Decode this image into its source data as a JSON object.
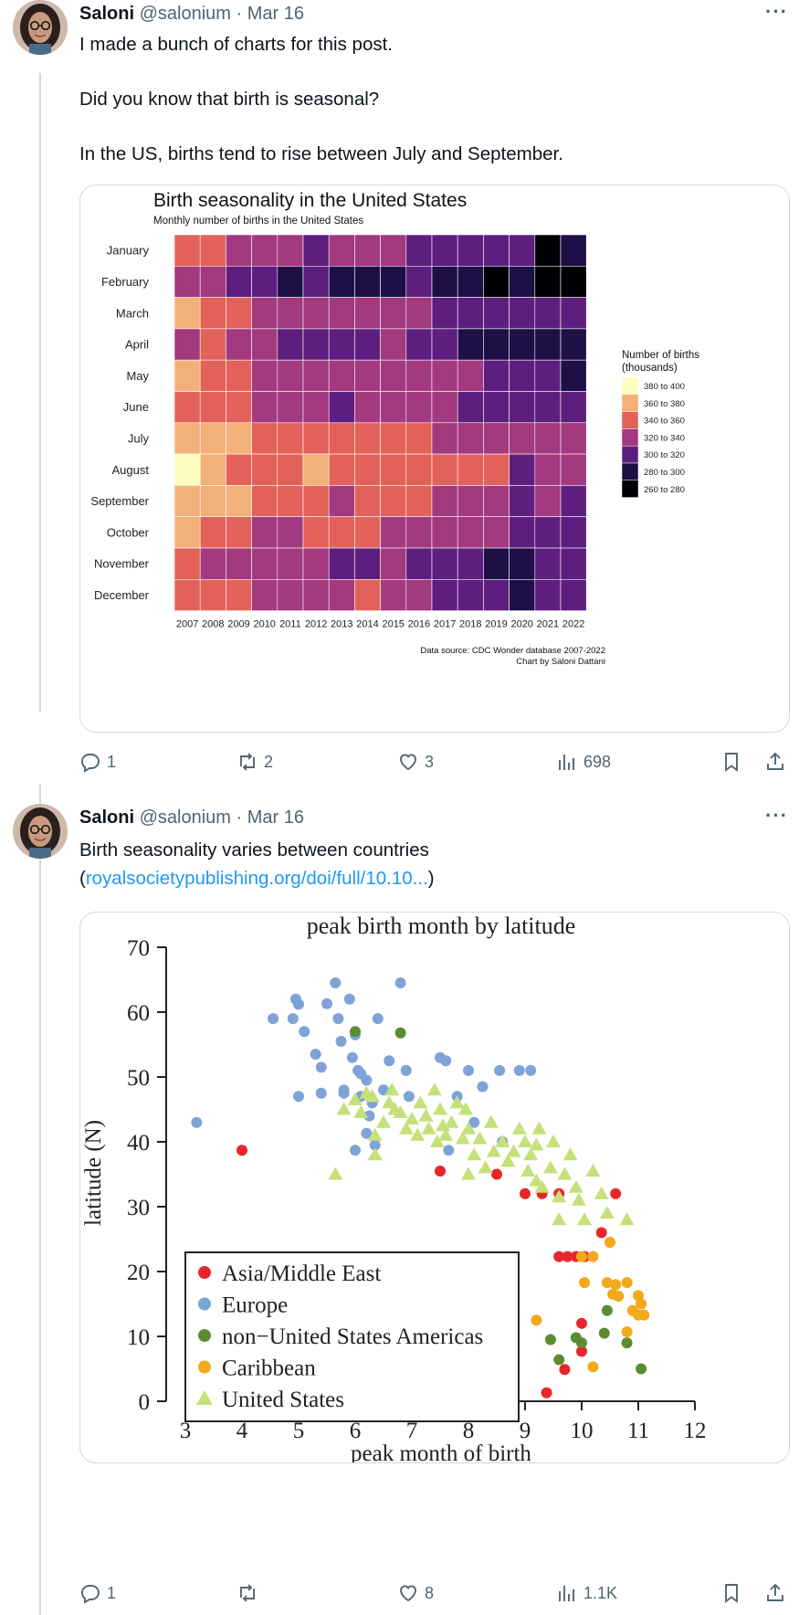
{
  "tweets": [
    {
      "author": "Saloni",
      "handle": "@salonium",
      "separator": "·",
      "date": "Mar 16",
      "text_lines": [
        "I made a bunch of charts for this post.",
        "Did you know that birth is seasonal?",
        "In the US, births tend to rise between July and September."
      ],
      "replies": "1",
      "reposts": "2",
      "likes": "3",
      "views": "698"
    },
    {
      "author": "Saloni",
      "handle": "@salonium",
      "separator": "·",
      "date": "Mar 16",
      "text_line1": "Birth seasonality varies between countries",
      "text_open_paren": "(",
      "link": "royalsocietypublishing.org/doi/full/10.10...",
      "text_close_paren": ")",
      "replies": "1",
      "reposts": "",
      "likes": "8",
      "views": "1.1K"
    }
  ],
  "chart_data": [
    {
      "type": "heatmap",
      "title": "Birth seasonality in the United States",
      "subtitle": "Monthly number of births in the United States",
      "rows": [
        "January",
        "February",
        "March",
        "April",
        "May",
        "June",
        "July",
        "August",
        "September",
        "October",
        "November",
        "December"
      ],
      "columns": [
        "2007",
        "2008",
        "2009",
        "2010",
        "2011",
        "2012",
        "2013",
        "2014",
        "2015",
        "2016",
        "2017",
        "2018",
        "2019",
        "2020",
        "2021",
        "2022"
      ],
      "values_bin_index": [
        [
          4,
          4,
          3,
          3,
          3,
          2,
          3,
          3,
          3,
          2,
          2,
          2,
          2,
          2,
          0,
          1
        ],
        [
          3,
          3,
          2,
          2,
          1,
          2,
          1,
          1,
          1,
          2,
          1,
          1,
          0,
          1,
          0,
          0
        ],
        [
          5,
          4,
          4,
          3,
          3,
          3,
          3,
          3,
          3,
          3,
          2,
          2,
          2,
          2,
          2,
          2
        ],
        [
          3,
          4,
          3,
          3,
          2,
          2,
          2,
          2,
          3,
          2,
          2,
          1,
          1,
          1,
          1,
          1
        ],
        [
          5,
          4,
          4,
          3,
          3,
          3,
          3,
          3,
          3,
          3,
          3,
          3,
          2,
          2,
          2,
          1
        ],
        [
          4,
          4,
          4,
          3,
          3,
          3,
          2,
          3,
          3,
          3,
          3,
          2,
          2,
          2,
          2,
          2
        ],
        [
          5,
          5,
          5,
          4,
          4,
          4,
          4,
          4,
          4,
          4,
          3,
          3,
          3,
          3,
          3,
          3
        ],
        [
          6,
          5,
          4,
          4,
          4,
          5,
          4,
          4,
          4,
          4,
          4,
          4,
          4,
          2,
          3,
          3
        ],
        [
          5,
          5,
          5,
          4,
          4,
          4,
          3,
          4,
          4,
          4,
          3,
          3,
          3,
          2,
          3,
          2
        ],
        [
          5,
          4,
          4,
          3,
          3,
          4,
          4,
          4,
          3,
          3,
          3,
          3,
          3,
          2,
          2,
          2
        ],
        [
          4,
          3,
          3,
          3,
          3,
          3,
          2,
          2,
          3,
          2,
          2,
          2,
          1,
          1,
          2,
          2
        ],
        [
          4,
          4,
          4,
          3,
          3,
          3,
          3,
          4,
          3,
          3,
          2,
          2,
          2,
          1,
          2,
          2
        ]
      ],
      "legend_title_line1": "Number of births",
      "legend_title_line2": "(thousands)",
      "legend_bins": [
        "380 to 400",
        "360 to 380",
        "340 to 360",
        "320 to 340",
        "300 to 320",
        "280 to 300",
        "260 to 280"
      ],
      "bin_colors": [
        "#000004",
        "#1e0f46",
        "#5e1e7f",
        "#a3397e",
        "#e2625a",
        "#f4b079",
        "#fcfdbf"
      ],
      "source_line1": "Data source: CDC Wonder database 2007-2022",
      "source_line2": "Chart by Saloni Dattani"
    },
    {
      "type": "scatter",
      "title": "peak birth month by latitude",
      "xlabel": "peak month of birth",
      "ylabel": "latitude (N)",
      "xlim": [
        3,
        12
      ],
      "ylim": [
        0,
        70
      ],
      "xticks": [
        "3",
        "4",
        "5",
        "6",
        "7",
        "8",
        "9",
        "10",
        "11",
        "12"
      ],
      "yticks": [
        "0",
        "10",
        "20",
        "30",
        "40",
        "50",
        "60",
        "70"
      ],
      "legend": [
        "Asia/Middle East",
        "Europe",
        "non−United States Americas",
        "Caribbean",
        "United States"
      ],
      "series_colors": [
        "#e8262a",
        "#7ea3d8",
        "#5d8b32",
        "#f2a91a",
        "#c6e07a"
      ],
      "series": [
        {
          "name": "Asia/Middle East",
          "marker": "circle",
          "points": [
            [
              4,
              38.7
            ],
            [
              7.5,
              35.5
            ],
            [
              8.5,
              35
            ],
            [
              9,
              32
            ],
            [
              9.3,
              32
            ],
            [
              9.6,
              32
            ],
            [
              10.6,
              32
            ],
            [
              10.35,
              26
            ],
            [
              9.6,
              22.3
            ],
            [
              9.75,
              22.3
            ],
            [
              9.9,
              22.3
            ],
            [
              10.05,
              22.3
            ],
            [
              10,
              12
            ],
            [
              10,
              7.7
            ],
            [
              9.7,
              4.9
            ],
            [
              9.38,
              1.3
            ]
          ]
        },
        {
          "name": "Europe",
          "marker": "circle",
          "points": [
            [
              3.2,
              43
            ],
            [
              4.55,
              59
            ],
            [
              4.9,
              59
            ],
            [
              4.95,
              62
            ],
            [
              5,
              61.2
            ],
            [
              5.1,
              57
            ],
            [
              5,
              47
            ],
            [
              5.3,
              53.5
            ],
            [
              5.4,
              51.5
            ],
            [
              5.5,
              61.3
            ],
            [
              5.65,
              64.5
            ],
            [
              5.7,
              59
            ],
            [
              5.9,
              62
            ],
            [
              5.75,
              55.5
            ],
            [
              5.8,
              48
            ],
            [
              5.95,
              53
            ],
            [
              6,
              56.5
            ],
            [
              6.05,
              51
            ],
            [
              6.1,
              50.5
            ],
            [
              6,
              38.7
            ],
            [
              6.2,
              41.3
            ],
            [
              6.25,
              44
            ],
            [
              6.3,
              46
            ],
            [
              6.35,
              39.5
            ],
            [
              6.4,
              59
            ],
            [
              6.5,
              48
            ],
            [
              6.6,
              52.5
            ],
            [
              6.8,
              64.5
            ],
            [
              6.9,
              51
            ],
            [
              6.95,
              47
            ],
            [
              7.5,
              53
            ],
            [
              7.6,
              52.5
            ],
            [
              7.8,
              47
            ],
            [
              8,
              51
            ],
            [
              8.25,
              48.5
            ],
            [
              8.55,
              51
            ],
            [
              8.9,
              51
            ],
            [
              9.1,
              51
            ],
            [
              5.4,
              47.5
            ],
            [
              5.8,
              47.5
            ],
            [
              6.1,
              47
            ],
            [
              6.2,
              49.5
            ],
            [
              7.65,
              38.7
            ],
            [
              8.1,
              43
            ],
            [
              8.6,
              40
            ]
          ]
        },
        {
          "name": "non−United States Americas",
          "marker": "circle",
          "points": [
            [
              6,
              57
            ],
            [
              6.8,
              56.8
            ],
            [
              10.45,
              14
            ],
            [
              10.4,
              10.5
            ],
            [
              9.9,
              9.8
            ],
            [
              9.45,
              9.5
            ],
            [
              10,
              9
            ],
            [
              9.6,
              6.4
            ],
            [
              10.8,
              9
            ],
            [
              11.05,
              5
            ]
          ]
        },
        {
          "name": "Caribbean",
          "marker": "circle",
          "points": [
            [
              10,
              22.3
            ],
            [
              10.2,
              22.3
            ],
            [
              10.5,
              24.5
            ],
            [
              10.05,
              18.3
            ],
            [
              10.45,
              18.3
            ],
            [
              10.6,
              18
            ],
            [
              10.8,
              18.3
            ],
            [
              10.65,
              16.2
            ],
            [
              10.55,
              16.5
            ],
            [
              11,
              16.3
            ],
            [
              11.05,
              15
            ],
            [
              10.9,
              14
            ],
            [
              11,
              13.3
            ],
            [
              11.1,
              13.3
            ],
            [
              9.2,
              12.5
            ],
            [
              10.8,
              10.7
            ],
            [
              10.2,
              5.3
            ]
          ]
        },
        {
          "name": "United States",
          "marker": "triangle",
          "points": [
            [
              5.65,
              35
            ],
            [
              5.8,
              45
            ],
            [
              6,
              46.5
            ],
            [
              6.1,
              44.5
            ],
            [
              6.2,
              47.5
            ],
            [
              6.3,
              47
            ],
            [
              6.35,
              41
            ],
            [
              6.35,
              38
            ],
            [
              6.5,
              43
            ],
            [
              6.6,
              46
            ],
            [
              6.65,
              48
            ],
            [
              6.7,
              45
            ],
            [
              6.8,
              44.5
            ],
            [
              6.9,
              42
            ],
            [
              7,
              43.5
            ],
            [
              7.1,
              41
            ],
            [
              7.15,
              46
            ],
            [
              7.25,
              44
            ],
            [
              7.3,
              42
            ],
            [
              7.4,
              48
            ],
            [
              7.45,
              40
            ],
            [
              7.5,
              45
            ],
            [
              7.55,
              42.5
            ],
            [
              7.6,
              41
            ],
            [
              7.7,
              43
            ],
            [
              7.8,
              46
            ],
            [
              7.9,
              40.5
            ],
            [
              7.95,
              45
            ],
            [
              8,
              42
            ],
            [
              8,
              35
            ],
            [
              8.1,
              38
            ],
            [
              8.2,
              40.5
            ],
            [
              8.3,
              36
            ],
            [
              8.4,
              43
            ],
            [
              8.45,
              38.5
            ],
            [
              8.6,
              40
            ],
            [
              8.7,
              37
            ],
            [
              8.8,
              38.5
            ],
            [
              8.9,
              42
            ],
            [
              9,
              40
            ],
            [
              9.05,
              35.5
            ],
            [
              9.1,
              38
            ],
            [
              9.2,
              39.5
            ],
            [
              9.25,
              42
            ],
            [
              9.3,
              33
            ],
            [
              9.45,
              36
            ],
            [
              9.5,
              40
            ],
            [
              9.6,
              31.5
            ],
            [
              9.7,
              35
            ],
            [
              9.8,
              38
            ],
            [
              9.9,
              33
            ],
            [
              9.95,
              31
            ],
            [
              10.05,
              28
            ],
            [
              10.2,
              35.5
            ],
            [
              10.35,
              32
            ],
            [
              10.45,
              29
            ],
            [
              10.8,
              28
            ],
            [
              9.6,
              28
            ],
            [
              9.2,
              34
            ]
          ]
        }
      ]
    }
  ]
}
